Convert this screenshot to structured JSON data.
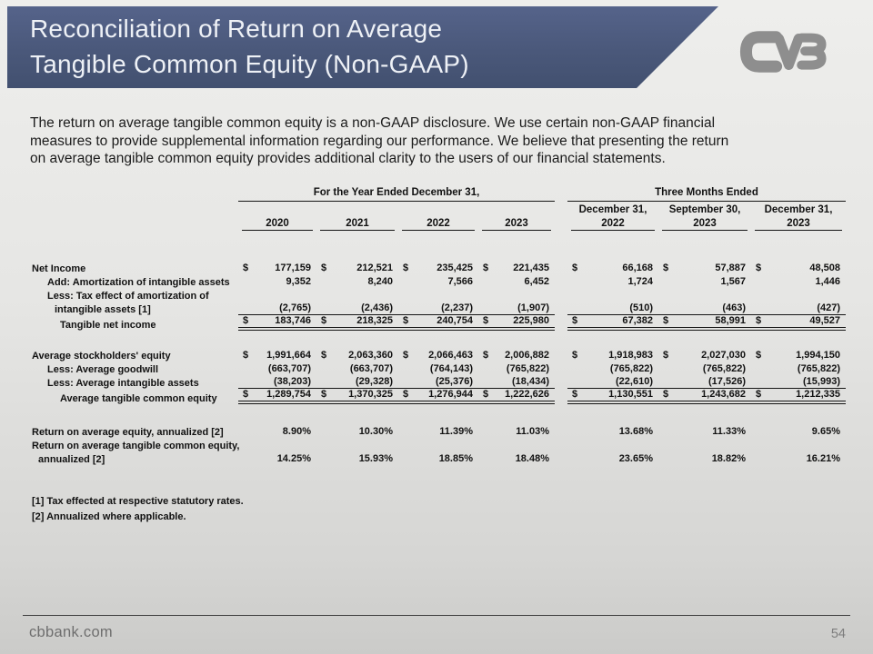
{
  "slide": {
    "title": "Reconciliation of Return on Average\nTangible Common Equity (Non-GAAP)",
    "intro": "The return on average tangible common equity is a non-GAAP disclosure. We use certain non-GAAP financial\nmeasures to provide supplemental information regarding our performance. We believe that presenting the return\non average tangible common equity provides additional clarity to the users of our financial statements.",
    "logo_icon": "cvb-logo",
    "footer": {
      "website": "cbbank.com",
      "page_number": "54"
    }
  },
  "colors": {
    "banner_blue": "#4a587a",
    "banner_text": "#eef1f6",
    "logo_gray": "#8e8e8e",
    "table_text": "#111111",
    "footer_text": "#6e6e6e",
    "background_top": "#eeeeec",
    "background_bottom": "#cbcbc9"
  },
  "table": {
    "group_headers": [
      {
        "label": "For the Year Ended December 31,",
        "span": 4
      },
      {
        "label": "Three Months Ended",
        "span": 3
      }
    ],
    "column_headers": [
      {
        "period": "",
        "year": "2020"
      },
      {
        "period": "",
        "year": "2021"
      },
      {
        "period": "",
        "year": "2022"
      },
      {
        "period": "",
        "year": "2023"
      },
      {
        "period": "December 31,",
        "year": "2022"
      },
      {
        "period": "September 30,",
        "year": "2023"
      },
      {
        "period": "December 31,",
        "year": "2023"
      }
    ],
    "rows": [
      {
        "label": "Net Income",
        "indent": 0,
        "dollar": true,
        "values": [
          "177,159",
          "212,521",
          "235,425",
          "221,435",
          "66,168",
          "57,887",
          "48,508"
        ]
      },
      {
        "label": "Add: Amortization of intangible assets",
        "indent": 1,
        "values": [
          "9,352",
          "8,240",
          "7,566",
          "6,452",
          "1,724",
          "1,567",
          "1,446"
        ]
      },
      {
        "label": "Less: Tax effect of amortization of",
        "indent": 1,
        "values": null
      },
      {
        "label": "intangible assets [1]",
        "indent": 2,
        "rule_below": "single",
        "values": [
          "(2,765)",
          "(2,436)",
          "(2,237)",
          "(1,907)",
          "(510)",
          "(463)",
          "(427)"
        ]
      },
      {
        "label": "Tangible net income",
        "indent": 3,
        "dollar": true,
        "rule_below": "double",
        "values": [
          "183,746",
          "218,325",
          "240,754",
          "225,980",
          "67,382",
          "58,991",
          "49,527"
        ]
      },
      {
        "spacer": "a"
      },
      {
        "label": "Average stockholders' equity",
        "indent": 0,
        "dollar": true,
        "values": [
          "1,991,664",
          "2,063,360",
          "2,066,463",
          "2,006,882",
          "1,918,983",
          "2,027,030",
          "1,994,150"
        ]
      },
      {
        "label": "Less: Average goodwill",
        "indent": 1,
        "values": [
          "(663,707)",
          "(663,707)",
          "(764,143)",
          "(765,822)",
          "(765,822)",
          "(765,822)",
          "(765,822)"
        ]
      },
      {
        "label": "Less: Average intangible assets",
        "indent": 1,
        "rule_below": "single",
        "values": [
          "(38,203)",
          "(29,328)",
          "(25,376)",
          "(18,434)",
          "(22,610)",
          "(17,526)",
          "(15,993)"
        ]
      },
      {
        "label": "Average tangible common equity",
        "indent": 3,
        "dollar": true,
        "rule_below": "double",
        "values": [
          "1,289,754",
          "1,370,325",
          "1,276,944",
          "1,222,626",
          "1,130,551",
          "1,243,682",
          "1,212,335"
        ]
      },
      {
        "spacer": "b"
      },
      {
        "label": "Return on average equity, annualized [2]",
        "indent": 0,
        "values": [
          "8.90%",
          "10.30%",
          "11.39%",
          "11.03%",
          "13.68%",
          "11.33%",
          "9.65%"
        ]
      },
      {
        "label": "Return on average tangible common equity,",
        "indent": 0,
        "values": null
      },
      {
        "label": "annualized [2]",
        "indent": 4,
        "values": [
          "14.25%",
          "15.93%",
          "18.85%",
          "18.48%",
          "23.65%",
          "18.82%",
          "16.21%"
        ]
      }
    ],
    "footnotes": [
      "[1] Tax effected at respective statutory rates.",
      "[2] Annualized where applicable."
    ]
  }
}
